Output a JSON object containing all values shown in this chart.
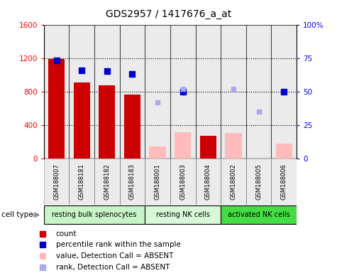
{
  "title": "GDS2957 / 1417676_a_at",
  "samples": [
    "GSM188007",
    "GSM188181",
    "GSM188182",
    "GSM188183",
    "GSM188001",
    "GSM188003",
    "GSM188004",
    "GSM188002",
    "GSM188005",
    "GSM188006"
  ],
  "cell_types": [
    {
      "label": "resting bulk splenocytes",
      "start": 0,
      "end": 4,
      "color": "#c8f5c8"
    },
    {
      "label": "resting NK cells",
      "start": 4,
      "end": 7,
      "color": "#d8f8d8"
    },
    {
      "label": "activated NK cells",
      "start": 7,
      "end": 10,
      "color": "#44dd44"
    }
  ],
  "bar_present_values": [
    1190,
    910,
    870,
    760,
    null,
    null,
    270,
    null,
    null,
    null
  ],
  "bar_present_color": "#cc0000",
  "bar_absent_values": [
    null,
    null,
    null,
    null,
    140,
    310,
    null,
    300,
    null,
    180
  ],
  "bar_absent_color": "#ffbbbb",
  "dot_present_pct": [
    73,
    66,
    65,
    63,
    null,
    50,
    null,
    null,
    null,
    50
  ],
  "dot_present_color": "#0000cc",
  "dot_absent_pct": [
    null,
    null,
    null,
    null,
    42,
    52,
    null,
    52,
    35,
    null
  ],
  "dot_absent_color": "#aaaaee",
  "ylim_left": [
    0,
    1600
  ],
  "ylim_right": [
    0,
    100
  ],
  "yticks_left": [
    0,
    400,
    800,
    1200,
    1600
  ],
  "ytick_labels_left": [
    "0",
    "400",
    "800",
    "1200",
    "1600"
  ],
  "yticks_right": [
    0,
    25,
    50,
    75,
    100
  ],
  "ytick_labels_right": [
    "0",
    "25",
    "50",
    "75",
    "100%"
  ],
  "legend_items": [
    {
      "label": "count",
      "color": "#cc0000"
    },
    {
      "label": "percentile rank within the sample",
      "color": "#0000cc"
    },
    {
      "label": "value, Detection Call = ABSENT",
      "color": "#ffbbbb"
    },
    {
      "label": "rank, Detection Call = ABSENT",
      "color": "#aaaaee"
    }
  ],
  "col_bg_color": "#c8c8c8",
  "plot_bg_color": "#ffffff"
}
